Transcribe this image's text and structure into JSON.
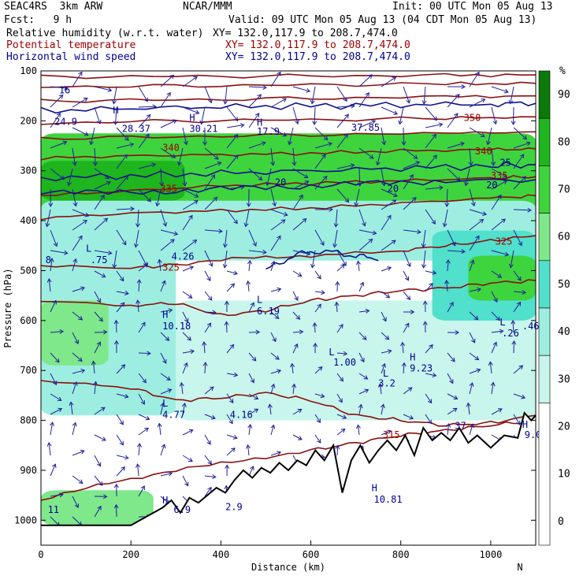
{
  "header": {
    "model_line": "SEAC4RS  3km ARW",
    "center": "NCAR/MMM",
    "init": "Init: 00 UTC Mon 05 Aug 13",
    "fcst": "Fcst:   9 h",
    "valid": "Valid: 09 UTC Mon 05 Aug 13 (04 CDT Mon 05 Aug 13)",
    "fields": [
      {
        "name": "Relative humidity (w.r.t. water)",
        "xy": "XY= 132.0,117.9 to 208.7,474.0",
        "color": "#000000"
      },
      {
        "name": "Potential temperature",
        "xy": "XY= 132.0,117.9 to 208.7,474.0",
        "color": "#a00000"
      },
      {
        "name": "Horizontal wind speed",
        "xy": "XY= 132.0,117.9 to 208.7,474.0",
        "color": "#000090"
      }
    ]
  },
  "chart_data": {
    "type": "heatmap",
    "xlabel": "Distance (km)",
    "ylabel": "Pressure (hPa)",
    "xlim": [
      0,
      1100
    ],
    "ylim": [
      1050,
      100
    ],
    "x_ticks": [
      0,
      200,
      400,
      600,
      800,
      1000
    ],
    "y_ticks": [
      100,
      200,
      300,
      400,
      500,
      600,
      700,
      800,
      900,
      1000
    ],
    "x_end_labels": {
      "left": "S",
      "right": "N"
    },
    "colorbar": {
      "unit": "%",
      "ticks": [
        0,
        10,
        20,
        30,
        40,
        50,
        60,
        70,
        80,
        90
      ],
      "bins": [
        {
          "low": 0,
          "high": 30,
          "color": "#ffffff"
        },
        {
          "low": 30,
          "high": 40,
          "color": "#c8f5ec"
        },
        {
          "low": 40,
          "high": 50,
          "color": "#9deee0"
        },
        {
          "low": 50,
          "high": 60,
          "color": "#50e0cb"
        },
        {
          "low": 60,
          "high": 70,
          "color": "#7ee88a"
        },
        {
          "low": 70,
          "high": 80,
          "color": "#3ed43e"
        },
        {
          "low": 80,
          "high": 90,
          "color": "#1eb51e"
        },
        {
          "low": 90,
          "high": 100,
          "color": "#0b7a0b"
        }
      ]
    },
    "rh_regions": [
      {
        "rh": 75,
        "x0": 0,
        "x1": 1100,
        "p_top": 225,
        "p_bot": 385
      },
      {
        "rh": 85,
        "x0": 0,
        "x1": 320,
        "p_top": 280,
        "p_bot": 360
      },
      {
        "rh": 45,
        "x0": 0,
        "x1": 1100,
        "p_top": 360,
        "p_bot": 480
      },
      {
        "rh": 45,
        "x0": 0,
        "x1": 300,
        "p_top": 450,
        "p_bot": 790
      },
      {
        "rh": 65,
        "x0": 0,
        "x1": 150,
        "p_top": 560,
        "p_bot": 690
      },
      {
        "rh": 35,
        "x0": 300,
        "x1": 1100,
        "p_top": 560,
        "p_bot": 800
      },
      {
        "rh": 55,
        "x0": 870,
        "x1": 1100,
        "p_top": 420,
        "p_bot": 600
      },
      {
        "rh": 75,
        "x0": 950,
        "x1": 1100,
        "p_top": 470,
        "p_bot": 560
      },
      {
        "rh": 65,
        "x0": 0,
        "x1": 250,
        "p_top": 940,
        "p_bot": 1010
      }
    ],
    "theta_contours": [
      {
        "level": 315,
        "points": [
          [
            0,
            960
          ],
          [
            150,
            925
          ],
          [
            300,
            900
          ],
          [
            450,
            880
          ],
          [
            600,
            860
          ],
          [
            700,
            845
          ],
          [
            800,
            830
          ],
          [
            900,
            820
          ],
          [
            1000,
            810
          ],
          [
            1100,
            800
          ]
        ]
      },
      {
        "level": 320,
        "points": [
          [
            0,
            720
          ],
          [
            200,
            735
          ],
          [
            300,
            760
          ],
          [
            400,
            755
          ],
          [
            500,
            745
          ],
          [
            600,
            760
          ],
          [
            700,
            790
          ],
          [
            800,
            800
          ],
          [
            900,
            810
          ],
          [
            1000,
            805
          ],
          [
            1100,
            790
          ]
        ]
      },
      {
        "level": 325,
        "points": [
          [
            0,
            560
          ],
          [
            200,
            570
          ],
          [
            300,
            565
          ],
          [
            400,
            590
          ],
          [
            500,
            580
          ],
          [
            600,
            560
          ],
          [
            700,
            550
          ],
          [
            800,
            540
          ],
          [
            900,
            535
          ],
          [
            1000,
            525
          ],
          [
            1100,
            520
          ]
        ]
      },
      {
        "level": 325,
        "points": [
          [
            0,
            490
          ],
          [
            200,
            495
          ],
          [
            300,
            488
          ],
          [
            450,
            475
          ],
          [
            600,
            470
          ],
          [
            800,
            460
          ],
          [
            900,
            450
          ],
          [
            1000,
            440
          ],
          [
            1100,
            430
          ]
        ]
      },
      {
        "level": 330,
        "points": [
          [
            0,
            395
          ],
          [
            200,
            385
          ],
          [
            400,
            380
          ],
          [
            600,
            375
          ],
          [
            800,
            365
          ],
          [
            1000,
            355
          ],
          [
            1100,
            350
          ]
        ]
      },
      {
        "level": 335,
        "points": [
          [
            0,
            350
          ],
          [
            200,
            340
          ],
          [
            400,
            330
          ],
          [
            600,
            325
          ],
          [
            800,
            320
          ],
          [
            1000,
            315
          ],
          [
            1100,
            312
          ]
        ]
      },
      {
        "level": 340,
        "points": [
          [
            0,
            275
          ],
          [
            200,
            270
          ],
          [
            400,
            268
          ],
          [
            600,
            265
          ],
          [
            800,
            260
          ],
          [
            1000,
            258
          ],
          [
            1100,
            256
          ]
        ]
      },
      {
        "level": 345,
        "points": [
          [
            0,
            235
          ],
          [
            300,
            232
          ],
          [
            600,
            228
          ],
          [
            900,
            225
          ],
          [
            1100,
            222
          ]
        ]
      },
      {
        "level": 350,
        "points": [
          [
            0,
            205
          ],
          [
            300,
            200
          ],
          [
            600,
            198
          ],
          [
            900,
            195
          ],
          [
            1100,
            192
          ]
        ]
      },
      {
        "level": 355,
        "points": [
          [
            0,
            160
          ],
          [
            300,
            158
          ],
          [
            600,
            155
          ],
          [
            900,
            152
          ],
          [
            1100,
            150
          ]
        ]
      },
      {
        "level": 360,
        "points": [
          [
            0,
            132
          ],
          [
            300,
            130
          ],
          [
            600,
            128
          ],
          [
            900,
            126
          ],
          [
            1100,
            125
          ]
        ]
      },
      {
        "level": 365,
        "points": [
          [
            0,
            112
          ],
          [
            300,
            111
          ],
          [
            600,
            110
          ],
          [
            900,
            109
          ],
          [
            1100,
            108
          ]
        ]
      }
    ],
    "wind_contours": [
      {
        "level": 20,
        "points": [
          [
            0,
            340
          ],
          [
            150,
            345
          ],
          [
            300,
            340
          ],
          [
            450,
            335
          ],
          [
            600,
            330
          ],
          [
            750,
            325
          ],
          [
            900,
            320
          ],
          [
            1100,
            318
          ]
        ]
      },
      {
        "level": 25,
        "points": [
          [
            0,
            315
          ],
          [
            200,
            310
          ],
          [
            400,
            305
          ],
          [
            600,
            300
          ],
          [
            800,
            295
          ],
          [
            1000,
            290
          ],
          [
            1100,
            288
          ]
        ]
      },
      {
        "level": 30,
        "points": [
          [
            0,
            180
          ],
          [
            200,
            175
          ],
          [
            400,
            172
          ],
          [
            600,
            170
          ],
          [
            800,
            168
          ],
          [
            1000,
            166
          ],
          [
            1100,
            165
          ]
        ]
      },
      {
        "level": 20,
        "points": [
          [
            500,
            500
          ],
          [
            560,
            470
          ],
          [
            620,
            460
          ],
          [
            700,
            470
          ],
          [
            750,
            480
          ]
        ]
      }
    ],
    "terrain": [
      [
        0,
        1010
      ],
      [
        200,
        1010
      ],
      [
        270,
        975
      ],
      [
        290,
        960
      ],
      [
        310,
        985
      ],
      [
        330,
        955
      ],
      [
        350,
        965
      ],
      [
        370,
        950
      ],
      [
        390,
        935
      ],
      [
        410,
        945
      ],
      [
        430,
        920
      ],
      [
        450,
        900
      ],
      [
        470,
        915
      ],
      [
        490,
        895
      ],
      [
        510,
        905
      ],
      [
        530,
        885
      ],
      [
        550,
        900
      ],
      [
        570,
        880
      ],
      [
        590,
        890
      ],
      [
        610,
        860
      ],
      [
        630,
        880
      ],
      [
        650,
        850
      ],
      [
        670,
        945
      ],
      [
        690,
        880
      ],
      [
        710,
        850
      ],
      [
        730,
        885
      ],
      [
        750,
        860
      ],
      [
        770,
        840
      ],
      [
        790,
        860
      ],
      [
        810,
        830
      ],
      [
        830,
        870
      ],
      [
        850,
        815
      ],
      [
        870,
        840
      ],
      [
        890,
        825
      ],
      [
        910,
        840
      ],
      [
        930,
        815
      ],
      [
        950,
        845
      ],
      [
        970,
        830
      ],
      [
        1000,
        855
      ],
      [
        1030,
        830
      ],
      [
        1060,
        835
      ],
      [
        1075,
        785
      ],
      [
        1090,
        800
      ],
      [
        1100,
        790
      ]
    ],
    "annotations": [
      {
        "x": 40,
        "p": 145,
        "text": "16",
        "color": "#000090"
      },
      {
        "x": 160,
        "p": 185,
        "text": "H",
        "color": "#000090"
      },
      {
        "x": 30,
        "p": 208,
        "text": "24.9",
        "color": "#000090"
      },
      {
        "x": 180,
        "p": 222,
        "text": "28.37",
        "color": "#000090"
      },
      {
        "x": 330,
        "p": 200,
        "text": "H",
        "color": "#000090"
      },
      {
        "x": 330,
        "p": 222,
        "text": "30.21",
        "color": "#000090"
      },
      {
        "x": 480,
        "p": 210,
        "text": "H",
        "color": "#000090"
      },
      {
        "x": 480,
        "p": 228,
        "text": "17.9",
        "color": "#000090"
      },
      {
        "x": 690,
        "p": 220,
        "text": "37.85",
        "color": "#000090"
      },
      {
        "x": 940,
        "p": 200,
        "text": "350",
        "color": "#a00000"
      },
      {
        "x": 965,
        "p": 267,
        "text": "340",
        "color": "#a00000"
      },
      {
        "x": 1020,
        "p": 290,
        "text": "25",
        "color": "#000090"
      },
      {
        "x": 1000,
        "p": 316,
        "text": "335",
        "color": "#a00000"
      },
      {
        "x": 990,
        "p": 335,
        "text": "20",
        "color": "#000090"
      },
      {
        "x": 270,
        "p": 260,
        "text": "340",
        "color": "#a00000"
      },
      {
        "x": 265,
        "p": 342,
        "text": "335",
        "color": "#a00000"
      },
      {
        "x": 520,
        "p": 330,
        "text": "20",
        "color": "#000090"
      },
      {
        "x": 770,
        "p": 342,
        "text": "20",
        "color": "#000090"
      },
      {
        "x": 1010,
        "p": 448,
        "text": "325",
        "color": "#a00000"
      },
      {
        "x": 100,
        "p": 462,
        "text": "L",
        "color": "#000090"
      },
      {
        "x": 10,
        "p": 485,
        "text": "8",
        "color": "#000090"
      },
      {
        "x": 110,
        "p": 485,
        "text": ".75",
        "color": "#000090"
      },
      {
        "x": 290,
        "p": 478,
        "text": "4.26",
        "color": "#000090"
      },
      {
        "x": 270,
        "p": 500,
        "text": "325",
        "color": "#a00000"
      },
      {
        "x": 480,
        "p": 565,
        "text": "L",
        "color": "#000090"
      },
      {
        "x": 480,
        "p": 588,
        "text": "6.19",
        "color": "#000090"
      },
      {
        "x": 270,
        "p": 595,
        "text": "H",
        "color": "#000090"
      },
      {
        "x": 270,
        "p": 618,
        "text": "10.18",
        "color": "#000090"
      },
      {
        "x": 1020,
        "p": 610,
        "text": "L",
        "color": "#000090"
      },
      {
        "x": 1025,
        "p": 632,
        "text": ".26",
        "color": "#000090"
      },
      {
        "x": 1070,
        "p": 618,
        "text": ".46",
        "color": "#000090"
      },
      {
        "x": 640,
        "p": 670,
        "text": "L",
        "color": "#000090"
      },
      {
        "x": 650,
        "p": 690,
        "text": "1.00",
        "color": "#000090"
      },
      {
        "x": 820,
        "p": 680,
        "text": "H",
        "color": "#000090"
      },
      {
        "x": 820,
        "p": 702,
        "text": "9.23",
        "color": "#000090"
      },
      {
        "x": 760,
        "p": 712,
        "text": "L",
        "color": "#000090"
      },
      {
        "x": 750,
        "p": 732,
        "text": "3.2",
        "color": "#000090"
      },
      {
        "x": 270,
        "p": 772,
        "text": "L",
        "color": "#000090"
      },
      {
        "x": 270,
        "p": 795,
        "text": "4.77",
        "color": "#000090"
      },
      {
        "x": 420,
        "p": 795,
        "text": "4.16",
        "color": "#000090"
      },
      {
        "x": 760,
        "p": 835,
        "text": "315",
        "color": "#a00000"
      },
      {
        "x": 920,
        "p": 817,
        "text": "37",
        "color": "#000090"
      },
      {
        "x": 1070,
        "p": 815,
        "text": "H",
        "color": "#000090"
      },
      {
        "x": 1075,
        "p": 835,
        "text": "9.0",
        "color": "#000090"
      },
      {
        "x": 735,
        "p": 942,
        "text": "H",
        "color": "#000090"
      },
      {
        "x": 740,
        "p": 965,
        "text": "10.81",
        "color": "#000090"
      },
      {
        "x": 270,
        "p": 966,
        "text": "H",
        "color": "#000090"
      },
      {
        "x": 295,
        "p": 985,
        "text": "6.9",
        "color": "#000090"
      },
      {
        "x": 410,
        "p": 980,
        "text": "2.9",
        "color": "#000090"
      },
      {
        "x": 15,
        "p": 985,
        "text": "11",
        "color": "#000090"
      }
    ],
    "wind_field": "vector arrows (unlabeled, direction/speed only)"
  }
}
